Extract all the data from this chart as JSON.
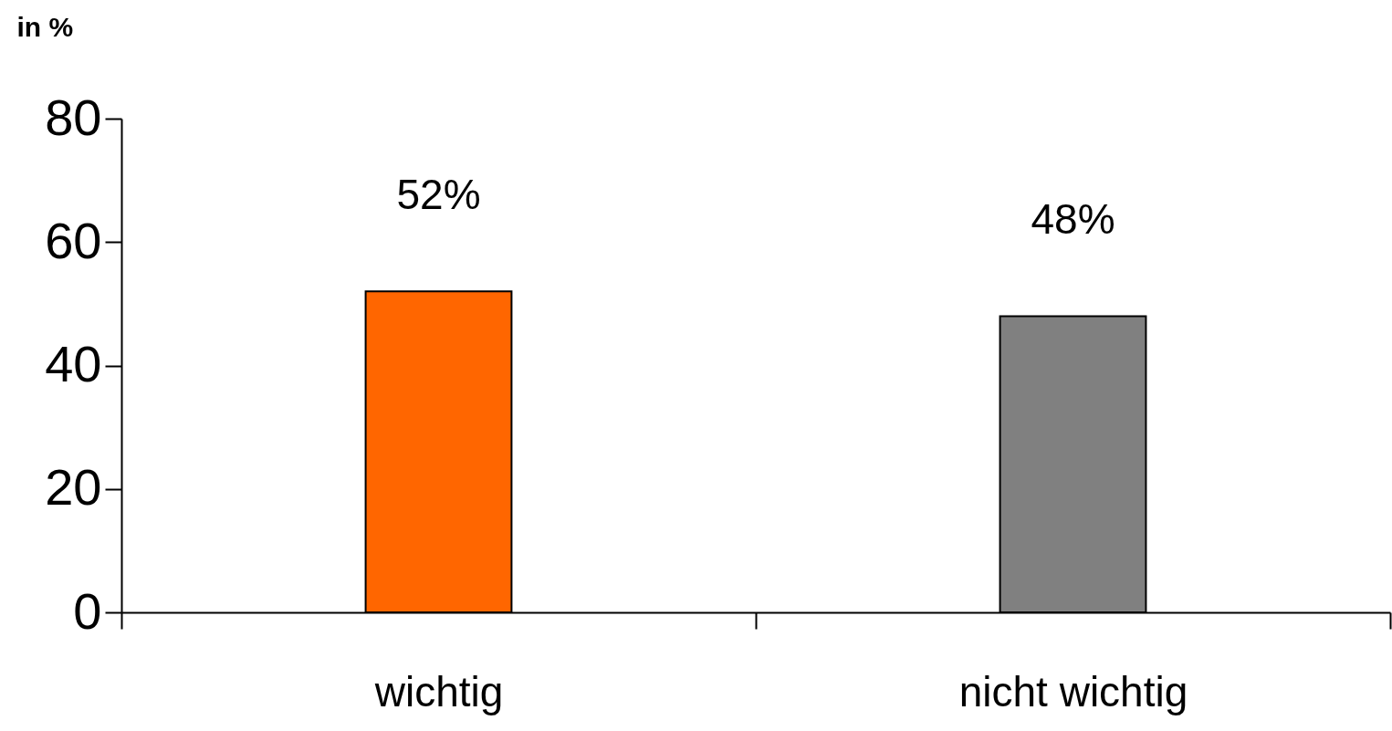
{
  "chart_data": {
    "type": "bar",
    "ylabel": "in %",
    "categories": [
      "wichtig",
      "nicht wichtig"
    ],
    "values": [
      52,
      48
    ],
    "colors": [
      "#ff6600",
      "#808080"
    ],
    "value_labels": [
      "52%",
      "48%"
    ],
    "ylim": [
      0,
      80
    ],
    "yticks": [
      0,
      20,
      40,
      60,
      80
    ],
    "grid": false
  }
}
